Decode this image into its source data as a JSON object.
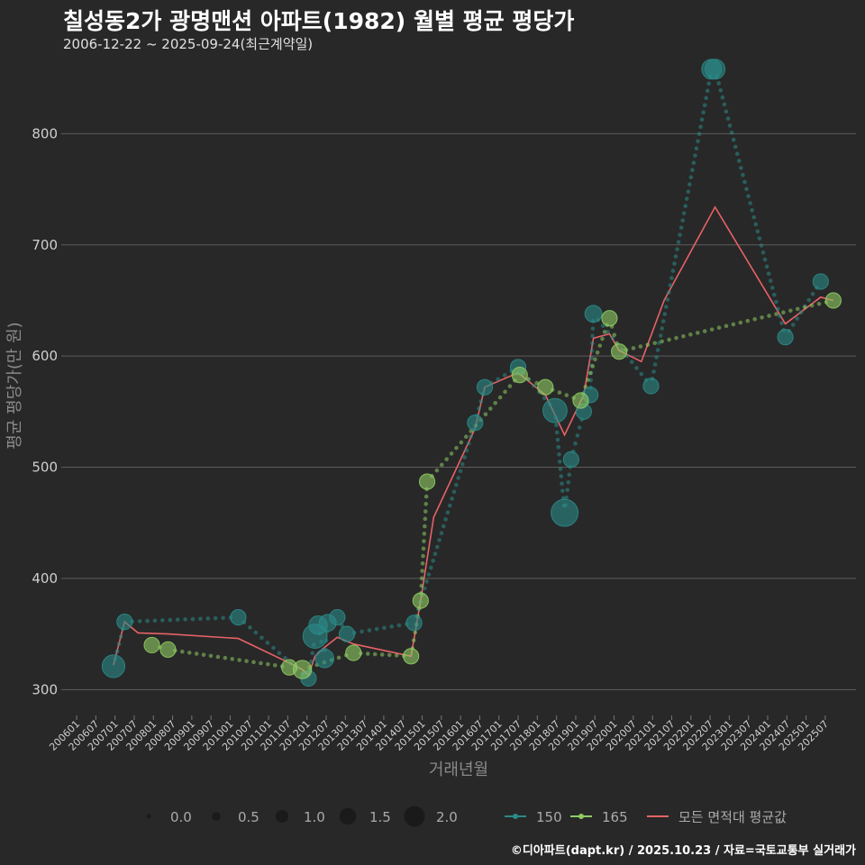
{
  "chart_data": {
    "type": "line",
    "title": "칠성동2가 광명맨션 아파트(1982) 월별 평균 평당가",
    "subtitle": "2006-12-22 ~ 2025-09-24(최근계약일)",
    "xlabel": "거래년월",
    "ylabel": "평균 평당가(만 원)",
    "ylim": [
      280,
      870
    ],
    "yticks": [
      300,
      400,
      500,
      600,
      700,
      800
    ],
    "x_tick_labels": [
      "200601",
      "200607",
      "200701",
      "200707",
      "200801",
      "200807",
      "200901",
      "200907",
      "201001",
      "201007",
      "201101",
      "201107",
      "201201",
      "201207",
      "201301",
      "201307",
      "201401",
      "201407",
      "201501",
      "201507",
      "201601",
      "201607",
      "201701",
      "201707",
      "201801",
      "201807",
      "201901",
      "201907",
      "202001",
      "202007",
      "202101",
      "202107",
      "202201",
      "202207",
      "202301",
      "202307",
      "202401",
      "202407",
      "202501",
      "202507"
    ],
    "series": [
      {
        "name": "150",
        "color": "#2a8a87",
        "points": [
          {
            "x": 2006.96,
            "y": 321,
            "size": 1.2
          },
          {
            "x": 2007.25,
            "y": 361,
            "size": 0.7
          },
          {
            "x": 2010.21,
            "y": 365,
            "size": 0.7
          },
          {
            "x": 2012.04,
            "y": 310,
            "size": 0.7
          },
          {
            "x": 2012.21,
            "y": 348,
            "size": 1.3
          },
          {
            "x": 2012.29,
            "y": 358,
            "size": 0.9
          },
          {
            "x": 2012.46,
            "y": 328,
            "size": 0.9
          },
          {
            "x": 2012.54,
            "y": 360,
            "size": 0.8
          },
          {
            "x": 2012.79,
            "y": 365,
            "size": 0.7
          },
          {
            "x": 2013.04,
            "y": 350,
            "size": 0.7
          },
          {
            "x": 2014.79,
            "y": 360,
            "size": 0.7
          },
          {
            "x": 2016.38,
            "y": 540,
            "size": 0.7
          },
          {
            "x": 2016.63,
            "y": 572,
            "size": 0.7
          },
          {
            "x": 2017.5,
            "y": 590,
            "size": 0.7
          },
          {
            "x": 2018.46,
            "y": 551,
            "size": 1.3
          },
          {
            "x": 2018.71,
            "y": 459,
            "size": 1.5
          },
          {
            "x": 2018.88,
            "y": 507,
            "size": 0.7
          },
          {
            "x": 2019.21,
            "y": 550,
            "size": 0.7
          },
          {
            "x": 2019.38,
            "y": 565,
            "size": 0.7
          },
          {
            "x": 2019.46,
            "y": 638,
            "size": 0.8
          },
          {
            "x": 2020.96,
            "y": 573,
            "size": 0.7
          },
          {
            "x": 2022.54,
            "y": 858,
            "size": 1.0
          },
          {
            "x": 2022.63,
            "y": 858,
            "size": 1.0
          },
          {
            "x": 2024.46,
            "y": 617,
            "size": 0.7
          },
          {
            "x": 2025.38,
            "y": 667,
            "size": 0.7
          }
        ]
      },
      {
        "name": "165",
        "color": "#8ecb63",
        "points": [
          {
            "x": 2007.96,
            "y": 340,
            "size": 0.7
          },
          {
            "x": 2008.38,
            "y": 336,
            "size": 0.7
          },
          {
            "x": 2011.54,
            "y": 320,
            "size": 0.7
          },
          {
            "x": 2011.88,
            "y": 318,
            "size": 0.9
          },
          {
            "x": 2013.21,
            "y": 333,
            "size": 0.7
          },
          {
            "x": 2014.71,
            "y": 330,
            "size": 0.7
          },
          {
            "x": 2014.96,
            "y": 380,
            "size": 0.7
          },
          {
            "x": 2015.13,
            "y": 487,
            "size": 0.7
          },
          {
            "x": 2017.54,
            "y": 583,
            "size": 0.7
          },
          {
            "x": 2018.21,
            "y": 572,
            "size": 0.7
          },
          {
            "x": 2019.13,
            "y": 560,
            "size": 0.7
          },
          {
            "x": 2019.88,
            "y": 634,
            "size": 0.7
          },
          {
            "x": 2020.13,
            "y": 604,
            "size": 0.7
          },
          {
            "x": 2025.71,
            "y": 650,
            "size": 0.7
          }
        ]
      },
      {
        "name": "모든 면적대 평균값",
        "color": "#e76266",
        "points": [
          {
            "x": 2006.96,
            "y": 322
          },
          {
            "x": 2007.25,
            "y": 361
          },
          {
            "x": 2007.6,
            "y": 351
          },
          {
            "x": 2008.38,
            "y": 350
          },
          {
            "x": 2010.21,
            "y": 346
          },
          {
            "x": 2011.54,
            "y": 324
          },
          {
            "x": 2011.88,
            "y": 318
          },
          {
            "x": 2012.04,
            "y": 313
          },
          {
            "x": 2012.21,
            "y": 330
          },
          {
            "x": 2012.46,
            "y": 338
          },
          {
            "x": 2012.79,
            "y": 347
          },
          {
            "x": 2013.21,
            "y": 341
          },
          {
            "x": 2014.71,
            "y": 330
          },
          {
            "x": 2014.96,
            "y": 380
          },
          {
            "x": 2015.3,
            "y": 455
          },
          {
            "x": 2016.38,
            "y": 535
          },
          {
            "x": 2016.63,
            "y": 572
          },
          {
            "x": 2017.5,
            "y": 585
          },
          {
            "x": 2018.21,
            "y": 565
          },
          {
            "x": 2018.71,
            "y": 529
          },
          {
            "x": 2019.21,
            "y": 565
          },
          {
            "x": 2019.46,
            "y": 616
          },
          {
            "x": 2019.88,
            "y": 620
          },
          {
            "x": 2020.13,
            "y": 605
          },
          {
            "x": 2020.71,
            "y": 595
          },
          {
            "x": 2021.3,
            "y": 650
          },
          {
            "x": 2022.63,
            "y": 734
          },
          {
            "x": 2024.46,
            "y": 629
          },
          {
            "x": 2025.38,
            "y": 653
          },
          {
            "x": 2025.71,
            "y": 650
          }
        ]
      }
    ],
    "legend": {
      "size_title": "",
      "size_entries": [
        "0.0",
        "0.5",
        "1.0",
        "1.5",
        "2.0"
      ],
      "size_values": [
        0.0,
        0.5,
        1.0,
        1.5,
        2.0
      ],
      "series_entries": [
        "150",
        "165",
        "모든 면적대 평균값"
      ],
      "placement": "bottom"
    }
  },
  "footer": "©디아파트(dapt.kr) / 2025.10.23 / 자료=국토교통부 실거래가"
}
